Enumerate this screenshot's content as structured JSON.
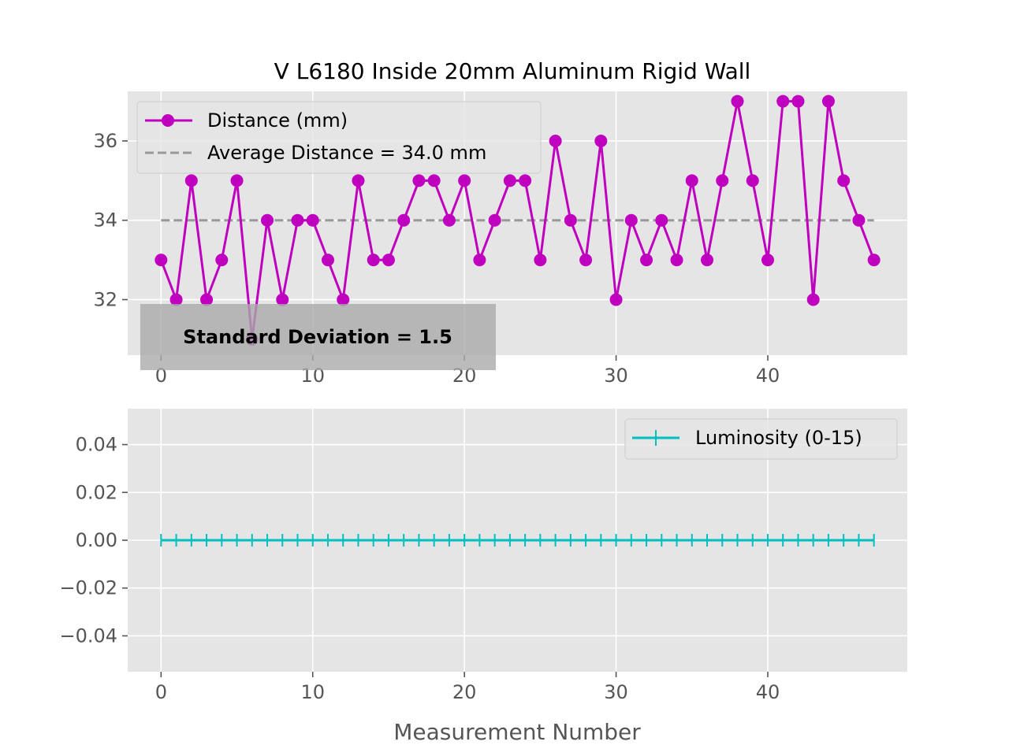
{
  "title": "V L6180 Inside 20mm Aluminum Rigid Wall",
  "colors": {
    "background": "#e5e5e5",
    "grid": "#ffffff",
    "distance": "#bf00bf",
    "average": "#999999",
    "luminosity": "#00bfbf",
    "tick_text": "#555555",
    "annotation_box": "#aaaaaa"
  },
  "chart_data": [
    {
      "type": "line",
      "xlabel": "",
      "ylabel": "",
      "xlim": [
        -2.2,
        49.2
      ],
      "ylim": [
        30.6,
        37.25
      ],
      "x_ticks": [
        0,
        10,
        20,
        30,
        40
      ],
      "y_ticks": [
        32,
        34,
        36
      ],
      "grid": true,
      "legend_position": "upper-left",
      "x": [
        0,
        1,
        2,
        3,
        4,
        5,
        6,
        7,
        8,
        9,
        10,
        11,
        12,
        13,
        14,
        15,
        16,
        17,
        18,
        19,
        20,
        21,
        22,
        23,
        24,
        25,
        26,
        27,
        28,
        29,
        30,
        31,
        32,
        33,
        34,
        35,
        36,
        37,
        38,
        39,
        40,
        41,
        42,
        43,
        44,
        45,
        46,
        47
      ],
      "series": [
        {
          "name": "Distance (mm)",
          "marker": "circle",
          "values": [
            33,
            32,
            35,
            32,
            33,
            35,
            31,
            34,
            32,
            34,
            34,
            33,
            32,
            35,
            33,
            33,
            34,
            35,
            35,
            34,
            35,
            33,
            34,
            35,
            35,
            33,
            36,
            34,
            33,
            36,
            32,
            34,
            33,
            34,
            33,
            35,
            33,
            35,
            37,
            35,
            33,
            37,
            37,
            32,
            37,
            35,
            34,
            33
          ]
        },
        {
          "name": "Average Distance = 34.0 mm",
          "style": "dashed",
          "x_range": [
            0,
            47
          ],
          "value": 34.0
        }
      ],
      "annotation": "Standard Deviation = 1.5"
    },
    {
      "type": "line",
      "xlabel": "Measurement Number",
      "ylabel": "",
      "xlim": [
        -2.2,
        49.2
      ],
      "ylim": [
        -0.055,
        0.055
      ],
      "x_ticks": [
        0,
        10,
        20,
        30,
        40
      ],
      "y_ticks": [
        0.04,
        0.02,
        0.0,
        -0.02,
        -0.04
      ],
      "y_tick_labels": [
        "0.04",
        "0.02",
        "0.00",
        "−0.02",
        "−0.04"
      ],
      "grid": true,
      "legend_position": "upper-right",
      "series": [
        {
          "name": "Luminosity (0-15)",
          "marker": "plus",
          "values": [
            0,
            0,
            0,
            0,
            0,
            0,
            0,
            0,
            0,
            0,
            0,
            0,
            0,
            0,
            0,
            0,
            0,
            0,
            0,
            0,
            0,
            0,
            0,
            0,
            0,
            0,
            0,
            0,
            0,
            0,
            0,
            0,
            0,
            0,
            0,
            0,
            0,
            0,
            0,
            0,
            0,
            0,
            0,
            0,
            0,
            0,
            0,
            0
          ]
        }
      ]
    }
  ]
}
